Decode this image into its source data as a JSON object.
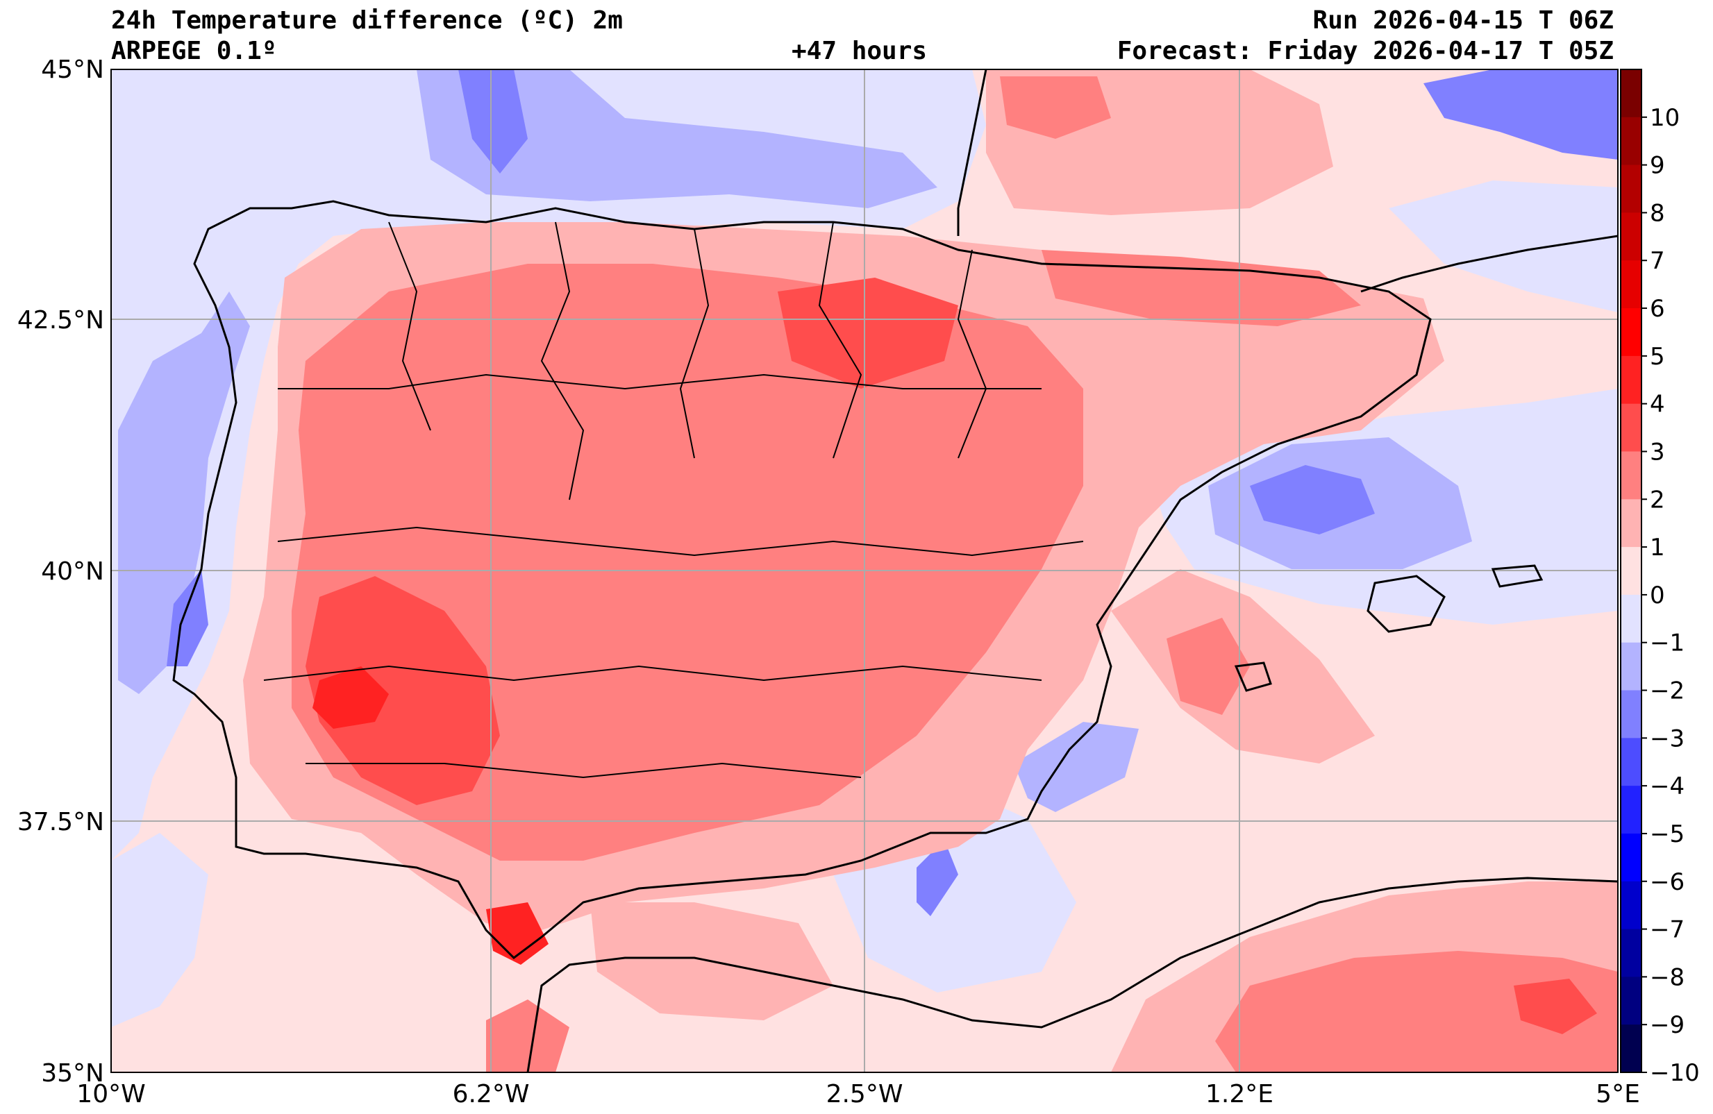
{
  "header": {
    "title": "24h Temperature difference (ºC) 2m",
    "model": "ARPEGE 0.1º",
    "lead_time": "+47 hours",
    "run": "Run 2026-04-15 T 06Z",
    "forecast": "Forecast: Friday 2026-04-17 T 05Z"
  },
  "axes": {
    "lat_ticks": [
      "45°N",
      "42.5°N",
      "40°N",
      "37.5°N",
      "35°N"
    ],
    "lon_ticks": [
      "10°W",
      "6.2°W",
      "2.5°W",
      "1.2°E",
      "5°E"
    ]
  },
  "colorbar": {
    "levels": [
      "10",
      "9",
      "8",
      "7",
      "6",
      "5",
      "4",
      "3",
      "2",
      "1",
      "0",
      "−1",
      "−2",
      "−3",
      "−4",
      "−5",
      "−6",
      "−7",
      "−8",
      "−9",
      "−10"
    ],
    "colors": [
      "#7a0000",
      "#990000",
      "#b30000",
      "#cc0000",
      "#e60000",
      "#ff0000",
      "#ff2222",
      "#ff4d4d",
      "#ff8080",
      "#ffb3b3",
      "#ffe1e1",
      "#e2e2ff",
      "#b3b3ff",
      "#8080ff",
      "#4d4dff",
      "#2222ff",
      "#0000ff",
      "#0000cc",
      "#0000a0",
      "#000080",
      "#000050"
    ]
  },
  "palette": {
    "sea_neutral": "#ffe1e1",
    "slight_cool": "#e2e2ff",
    "cool": "#b3b3ff",
    "cold": "#8080ff",
    "warm1": "#ffb3b3",
    "warm2": "#ff8080",
    "warm3": "#ff4d4d",
    "warm4": "#ff2222",
    "grid": "#aaaaaa",
    "coast": "#000000"
  }
}
